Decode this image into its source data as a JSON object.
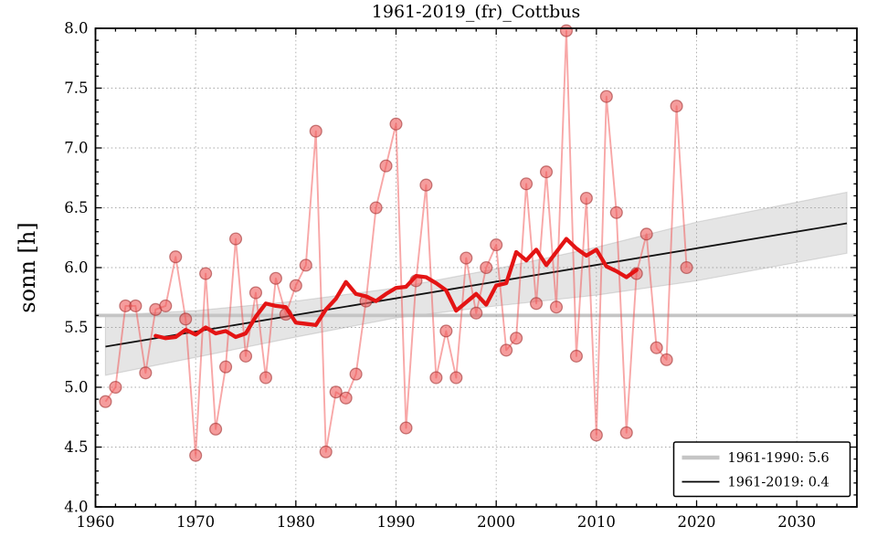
{
  "figure": {
    "title": "1961-2019_(fr)_Cottbus",
    "ylabel": "sonn [h]",
    "background": "#ffffff"
  },
  "axes": {
    "xlim": [
      1960,
      2036
    ],
    "ylim": [
      4.0,
      8.0
    ],
    "xticks": [
      "1960",
      "1970",
      "1980",
      "1990",
      "2000",
      "2010",
      "2020",
      "2030"
    ],
    "yticks": [
      "4.0",
      "4.5",
      "5.0",
      "5.5",
      "6.0",
      "6.5",
      "7.0",
      "7.5",
      "8.0"
    ],
    "grid": "dotted"
  },
  "colors": {
    "annual_line": "rgba(242,80,80,0.5)",
    "marker_fill": "rgba(238,90,90,0.6)",
    "marker_edge": "rgba(160,50,50,0.6)",
    "smoothed_line": "#e41414",
    "trend_line": "#111111",
    "band_fill": "rgba(150,150,150,0.25)",
    "band_edge": "rgba(150,150,150,0.3)",
    "mean_line": "#c5c5c5",
    "grid": "#999999",
    "frame": "#000000"
  },
  "legend": {
    "items": [
      {
        "label": "1961-1990: 5.6",
        "color": "#c5c5c5",
        "lw": 4.5
      },
      {
        "label": "1961-2019: 0.4",
        "color": "#000000",
        "lw": 1.7
      }
    ]
  },
  "chart_data": {
    "type": "line",
    "title": "1961-2019_(fr)_Cottbus",
    "xlabel": "",
    "ylabel": "sonn [h]",
    "xlim": [
      1960,
      2036
    ],
    "ylim": [
      4.0,
      8.0
    ],
    "grid": true,
    "legend_position": "lower right",
    "series": [
      {
        "name": "annual-sunshine",
        "style": "line+markers",
        "x": [
          1961,
          1962,
          1963,
          1964,
          1965,
          1966,
          1967,
          1968,
          1969,
          1970,
          1971,
          1972,
          1973,
          1974,
          1975,
          1976,
          1977,
          1978,
          1979,
          1980,
          1981,
          1982,
          1983,
          1984,
          1985,
          1986,
          1987,
          1988,
          1989,
          1990,
          1991,
          1992,
          1993,
          1994,
          1995,
          1996,
          1997,
          1998,
          1999,
          2000,
          2001,
          2002,
          2003,
          2004,
          2005,
          2006,
          2007,
          2008,
          2009,
          2010,
          2011,
          2012,
          2013,
          2014,
          2015,
          2016,
          2017,
          2018,
          2019
        ],
        "values": [
          4.88,
          5.0,
          5.68,
          5.68,
          5.12,
          5.65,
          5.68,
          6.09,
          5.57,
          4.43,
          5.95,
          4.65,
          5.17,
          6.24,
          5.26,
          5.79,
          5.08,
          5.91,
          5.61,
          5.85,
          6.02,
          7.14,
          4.46,
          4.96,
          4.91,
          5.11,
          5.72,
          6.5,
          6.85,
          7.2,
          4.66,
          5.89,
          6.69,
          5.08,
          5.47,
          5.08,
          6.08,
          5.62,
          6.0,
          6.19,
          5.31,
          5.41,
          6.7,
          5.7,
          6.8,
          5.67,
          7.98,
          5.26,
          6.58,
          4.6,
          7.43,
          6.46,
          4.62,
          5.95,
          6.28,
          5.33,
          5.23,
          7.35,
          6.0
        ]
      },
      {
        "name": "smoothed-11yr",
        "style": "thick-line",
        "x": [
          1966,
          1967,
          1968,
          1969,
          1970,
          1971,
          1972,
          1973,
          1974,
          1975,
          1976,
          1977,
          1978,
          1979,
          1980,
          1981,
          1982,
          1983,
          1984,
          1985,
          1986,
          1987,
          1988,
          1989,
          1990,
          1991,
          1992,
          1993,
          1994,
          1995,
          1996,
          1997,
          1998,
          1999,
          2000,
          2001,
          2002,
          2003,
          2004,
          2005,
          2006,
          2007,
          2008,
          2009,
          2010,
          2011,
          2012,
          2013,
          2014
        ],
        "values": [
          5.43,
          5.41,
          5.42,
          5.48,
          5.44,
          5.5,
          5.45,
          5.47,
          5.42,
          5.45,
          5.59,
          5.7,
          5.68,
          5.67,
          5.54,
          5.53,
          5.52,
          5.65,
          5.74,
          5.88,
          5.78,
          5.76,
          5.72,
          5.78,
          5.83,
          5.84,
          5.93,
          5.92,
          5.87,
          5.81,
          5.64,
          5.71,
          5.78,
          5.69,
          5.85,
          5.87,
          6.13,
          6.06,
          6.15,
          6.02,
          6.13,
          6.24,
          6.16,
          6.1,
          6.15,
          6.01,
          5.97,
          5.92,
          5.98
        ]
      },
      {
        "name": "mean-1961-1990",
        "style": "horizontal-line",
        "value": 5.6
      },
      {
        "name": "trend-1961-2019",
        "style": "straight-line",
        "x": [
          1961,
          2035
        ],
        "values": [
          5.34,
          6.37
        ]
      },
      {
        "name": "trend-confidence-band",
        "style": "band",
        "x": [
          1961,
          1970,
          1980,
          1990,
          2000,
          2010,
          2020,
          2035
        ],
        "lower": [
          5.1,
          5.25,
          5.42,
          5.58,
          5.68,
          5.77,
          5.89,
          6.12
        ],
        "upper": [
          5.6,
          5.64,
          5.72,
          5.83,
          5.99,
          6.17,
          6.38,
          6.63
        ]
      }
    ]
  }
}
